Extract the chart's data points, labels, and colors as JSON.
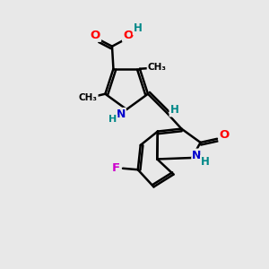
{
  "bg_color": "#e8e8e8",
  "atom_colors": {
    "C": "#000000",
    "N": "#0000cc",
    "O": "#ff0000",
    "F": "#cc00cc",
    "H": "#008888"
  },
  "bond_color": "#000000",
  "bond_width": 1.8,
  "figsize": [
    3.0,
    3.0
  ],
  "dpi": 100
}
